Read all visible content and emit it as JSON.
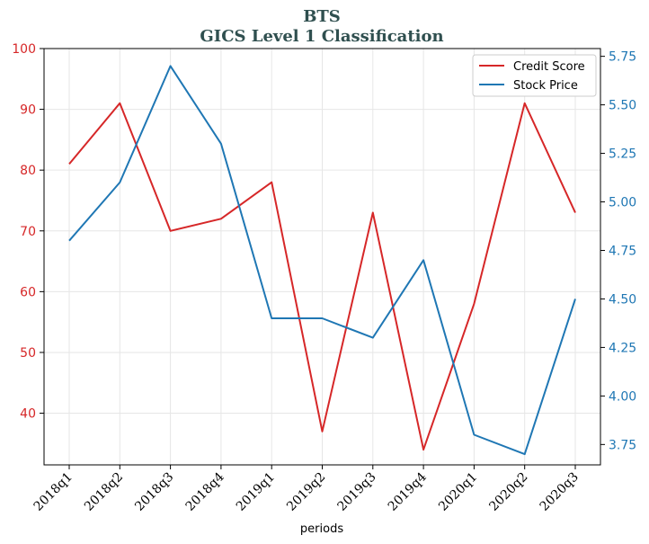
{
  "chart_data": {
    "type": "line",
    "title": "BTS",
    "subtitle": "GICS Level 1 Classification",
    "xlabel": "periods",
    "categories": [
      "2018q1",
      "2018q2",
      "2018q3",
      "2018q4",
      "2019q1",
      "2019q2",
      "2019q3",
      "2019q4",
      "2020q1",
      "2020q2",
      "2020q3"
    ],
    "series": [
      {
        "name": "Credit Score",
        "axis": "left",
        "color": "#d62728",
        "values": [
          81,
          91,
          70,
          72,
          78,
          37,
          73,
          34,
          58,
          91,
          73
        ]
      },
      {
        "name": "Stock Price",
        "axis": "right",
        "color": "#1f77b4",
        "values": [
          4.8,
          5.1,
          5.7,
          5.3,
          4.4,
          4.4,
          4.3,
          4.7,
          3.8,
          3.7,
          4.5
        ]
      }
    ],
    "y_left": {
      "ylim": [
        31.5,
        100
      ],
      "ticks": [
        40,
        50,
        60,
        70,
        80,
        90,
        100
      ],
      "color": "#d62728"
    },
    "y_right": {
      "ylim": [
        3.645,
        5.79
      ],
      "ticks": [
        "3.75",
        "4.00",
        "4.25",
        "4.50",
        "4.75",
        "5.00",
        "5.25",
        "5.50",
        "5.75"
      ],
      "color": "#1f77b4"
    },
    "grid": true,
    "legend": "top-right"
  }
}
